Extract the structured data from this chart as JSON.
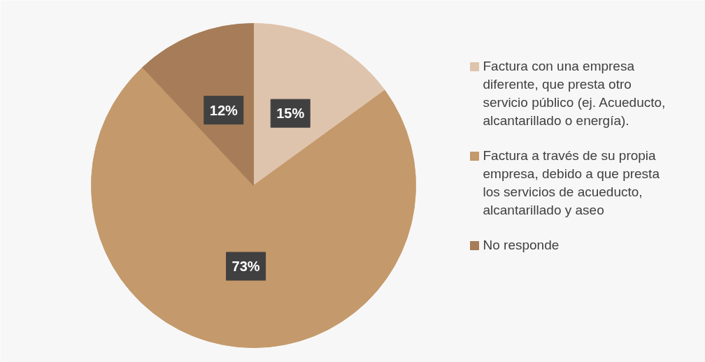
{
  "chart_data": {
    "type": "pie",
    "categories": [
      "Factura con una empresa\ndiferente, que presta otro\nservicio público (ej. Acueducto,\nalcantarillado o energía).",
      "Factura a través de su propia\nempresa, debido a que presta\nlos servicios de acueducto,\nalcantarillado y aseo",
      "No responde"
    ],
    "values": [
      15,
      73,
      12
    ],
    "colors": [
      "#dfc4ad",
      "#c4996b",
      "#a67d58"
    ],
    "value_labels": [
      "15%",
      "73%",
      "12%"
    ],
    "legend": "right"
  }
}
